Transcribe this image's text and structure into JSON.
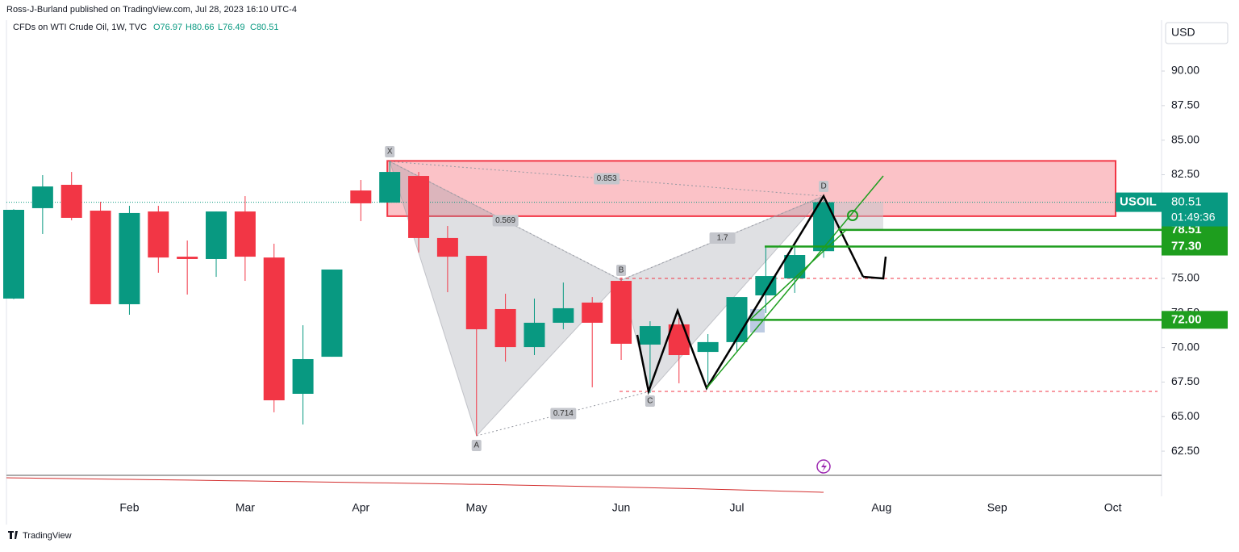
{
  "header": {
    "publisher": "Ross-J-Burland published on TradingView.com, Jul 28, 2023 16:10 UTC-4",
    "footer": "TradingView"
  },
  "chart_data": {
    "type": "candlestick",
    "title": "CFDs on WTI Crude Oil, 1W, TVC",
    "ohlc_legend": [
      "O76.97",
      "H80.66",
      "L76.49",
      "C80.51"
    ],
    "currency": "USD",
    "categories": [
      null,
      null,
      null,
      null,
      "Feb",
      null,
      null,
      null,
      "Mar",
      null,
      null,
      null,
      "Apr",
      null,
      null,
      null,
      "May",
      null,
      null,
      null,
      null,
      "Jun",
      null,
      null,
      null,
      "Jul",
      null,
      null,
      null,
      null,
      "Aug",
      null,
      null,
      null,
      "Sep",
      null,
      null,
      null,
      "Oct",
      null
    ],
    "open": [
      73.54,
      80.08,
      81.77,
      79.9,
      73.13,
      79.84,
      76.57,
      76.4,
      79.84,
      76.51,
      66.65,
      69.33,
      81.36,
      80.48,
      82.41,
      77.92,
      76.63,
      72.78,
      70.03,
      71.79,
      73.25,
      74.82,
      70.21,
      71.67,
      69.68,
      70.39,
      73.77,
      75.0,
      76.97,
      null,
      null,
      null,
      null,
      null,
      null,
      null,
      null,
      null,
      null,
      null
    ],
    "high": [
      80.0,
      82.47,
      82.7,
      80.54,
      80.25,
      80.25,
      77.74,
      79.84,
      80.95,
      77.51,
      71.61,
      75.64,
      82.12,
      83.46,
      82.7,
      78.79,
      76.63,
      73.89,
      73.54,
      74.7,
      73.65,
      75.06,
      71.9,
      72.14,
      70.97,
      73.65,
      77.33,
      77.27,
      80.66,
      null,
      null,
      null,
      null,
      null,
      null,
      null,
      null,
      null,
      null,
      null
    ],
    "low": [
      73.5,
      78.21,
      79.2,
      73.13,
      72.37,
      75.41,
      73.83,
      75.11,
      74.82,
      65.31,
      64.43,
      69.33,
      79.14,
      80.48,
      76.87,
      74.0,
      63.61,
      68.98,
      69.45,
      71.32,
      67.12,
      69.1,
      66.71,
      67.41,
      67.41,
      69.68,
      72.49,
      73.95,
      76.49,
      null,
      null,
      null,
      null,
      null,
      null,
      null,
      null,
      null,
      null,
      null
    ],
    "close": [
      79.96,
      81.65,
      79.38,
      73.13,
      79.73,
      76.51,
      76.4,
      79.84,
      76.57,
      66.18,
      69.16,
      75.64,
      80.43,
      82.7,
      77.92,
      76.57,
      71.32,
      70.03,
      71.79,
      72.84,
      71.79,
      70.27,
      71.55,
      69.45,
      70.39,
      73.65,
      75.17,
      76.69,
      80.51,
      null,
      null,
      null,
      null,
      null,
      null,
      null,
      null,
      null,
      null,
      null
    ],
    "up_color": "#089981",
    "down_color": "#f23645",
    "ylim": [
      60.81,
      93.68
    ],
    "yticks": [
      {
        "value": 62.5,
        "label": "62.50"
      },
      {
        "value": 65,
        "label": "65.00"
      },
      {
        "value": 67.5,
        "label": "67.50"
      },
      {
        "value": 70,
        "label": "70.00"
      },
      {
        "value": 72.5,
        "label": "72.50"
      },
      {
        "value": 75,
        "label": "75.00"
      },
      {
        "value": 77.5,
        "label": "77.50"
      },
      {
        "value": 80,
        "label": "80.00"
      },
      {
        "value": 82.5,
        "label": "82.50"
      },
      {
        "value": 85,
        "label": "85.00"
      },
      {
        "value": 87.5,
        "label": "87.50"
      },
      {
        "value": 90,
        "label": "90.00"
      }
    ],
    "last_price": {
      "symbol": "USOIL",
      "value": 80.51,
      "countdown": "01:49:36"
    },
    "levels": [
      {
        "value": 78.51,
        "label": "78.51"
      },
      {
        "value": 77.3,
        "label": "77.30"
      },
      {
        "value": 72,
        "label": "72.00"
      }
    ],
    "zone": {
      "from": 79.5,
      "to": 83.5,
      "color": "#f23645"
    },
    "support_lines": [
      75,
      66.82
    ],
    "harmonic": {
      "points": [
        {
          "label": "X",
          "index": 13,
          "value": 83.46
        },
        {
          "label": "A",
          "index": 16,
          "value": 63.61
        },
        {
          "label": "B",
          "index": 21,
          "value": 74.88
        },
        {
          "label": "C",
          "index": 22,
          "value": 66.82
        },
        {
          "label": "D",
          "index": 28,
          "value": 80.95
        }
      ],
      "ratios": [
        0.569,
        0.853,
        1.7,
        0.714
      ]
    }
  }
}
